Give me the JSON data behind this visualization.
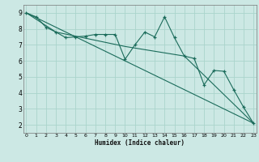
{
  "title": "",
  "xlabel": "Humidex (Indice chaleur)",
  "bg_color": "#cce8e4",
  "line_color": "#1a6b5a",
  "grid_color": "#aad4cc",
  "series1_x": [
    0,
    1,
    2,
    3,
    4,
    5,
    6,
    7,
    8,
    9,
    10,
    11,
    12,
    13,
    14,
    15,
    16,
    17,
    18,
    19,
    20,
    21,
    22,
    23
  ],
  "series1_y": [
    9.0,
    8.75,
    8.1,
    7.8,
    7.45,
    7.5,
    7.55,
    7.65,
    7.65,
    7.65,
    6.1,
    7.0,
    7.8,
    7.5,
    8.75,
    7.45,
    6.3,
    6.15,
    4.5,
    5.4,
    5.35,
    4.2,
    3.1,
    2.1
  ],
  "series2_x": [
    0,
    23
  ],
  "series2_y": [
    9.0,
    2.1
  ],
  "series3_x": [
    0,
    3,
    10,
    16,
    23
  ],
  "series3_y": [
    9.0,
    7.8,
    6.9,
    6.3,
    2.1
  ],
  "ylim": [
    1.5,
    9.5
  ],
  "xlim": [
    -0.3,
    23.3
  ],
  "yticks": [
    2,
    3,
    4,
    5,
    6,
    7,
    8,
    9
  ],
  "xticks": [
    0,
    1,
    2,
    3,
    4,
    5,
    6,
    7,
    8,
    9,
    10,
    11,
    12,
    13,
    14,
    15,
    16,
    17,
    18,
    19,
    20,
    21,
    22,
    23
  ]
}
